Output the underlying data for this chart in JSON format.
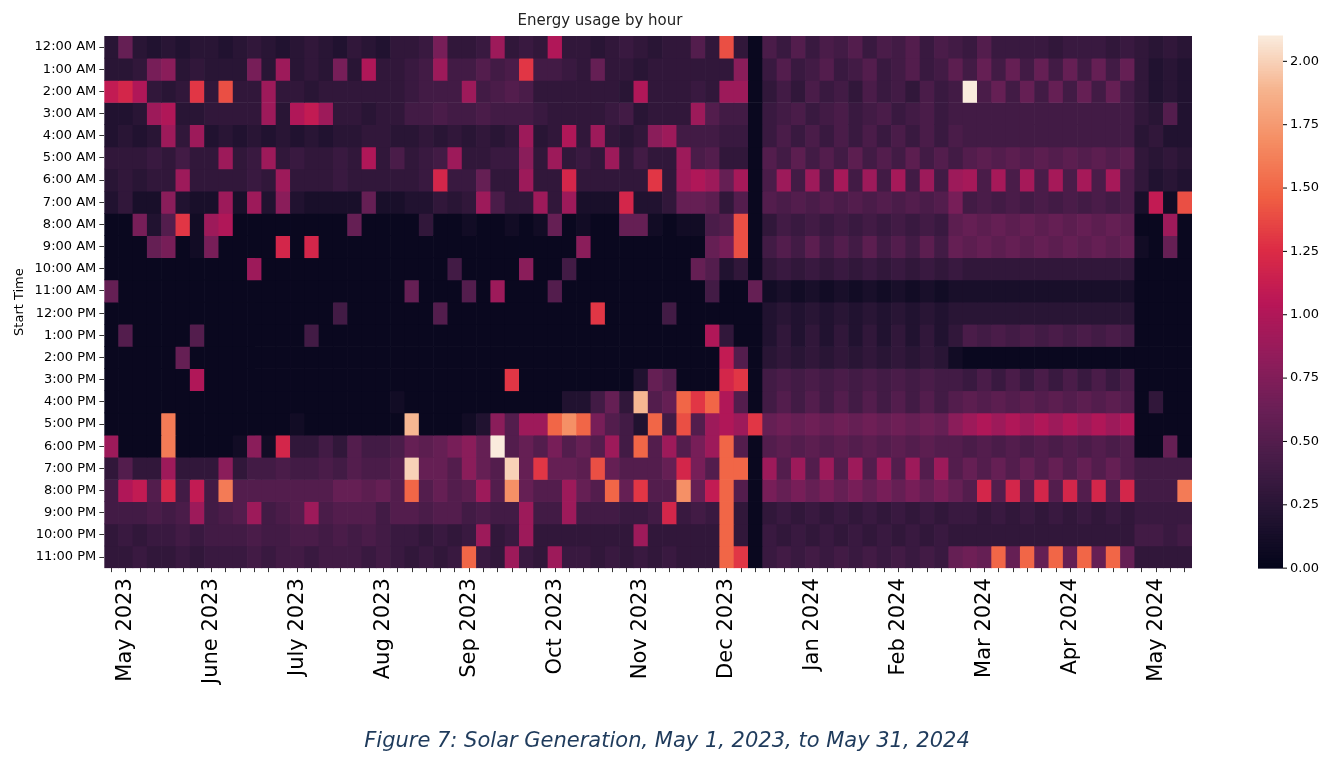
{
  "chart_data": {
    "type": "heatmap",
    "title": "Energy usage by hour",
    "ylabel": "Start Time",
    "categories": [
      null,
      "May 2023",
      null,
      null,
      null,
      null,
      null,
      "June 2023",
      null,
      null,
      null,
      null,
      null,
      "July 2023",
      null,
      null,
      null,
      null,
      null,
      "Aug 2023",
      null,
      null,
      null,
      null,
      null,
      "Sep 2023",
      null,
      null,
      null,
      null,
      null,
      "Oct 2023",
      null,
      null,
      null,
      null,
      null,
      "Nov 2023",
      null,
      null,
      null,
      null,
      null,
      "Dec 2023",
      null,
      null,
      null,
      null,
      null,
      "Jan 2024",
      null,
      null,
      null,
      null,
      null,
      "Feb 2024",
      null,
      null,
      null,
      null,
      null,
      "Mar 2024",
      null,
      null,
      null,
      null,
      null,
      "Apr 2024",
      null,
      null,
      null,
      null,
      null,
      "May 2024",
      null,
      null
    ],
    "y_categories": [
      "12:00 AM",
      "1:00 AM",
      "2:00 AM",
      "3:00 AM",
      "4:00 AM",
      "5:00 AM",
      "6:00 AM",
      "7:00 AM",
      "8:00 AM",
      "9:00 AM",
      "10:00 AM",
      "11:00 AM",
      "12:00 PM",
      "1:00 PM",
      "2:00 PM",
      "3:00 PM",
      "4:00 PM",
      "5:00 PM",
      "6:00 PM",
      "7:00 PM",
      "8:00 PM",
      "9:00 PM",
      "10:00 PM",
      "11:00 PM"
    ],
    "cells": [
      [
        0.25,
        0.6,
        0.25,
        0.2,
        0.25,
        0.2,
        0.25,
        0.25,
        0.2,
        0.25,
        0.3,
        0.25,
        0.2,
        0.25,
        0.3,
        0.25,
        0.2,
        0.3,
        0.25,
        0.2,
        0.3,
        0.3,
        0.35,
        0.7,
        0.3,
        0.3,
        0.35,
        0.9,
        0.3,
        0.35,
        0.3,
        1.0,
        0.3,
        0.3,
        0.25,
        0.3,
        0.35,
        0.3,
        0.25,
        0.3,
        0.3,
        0.5,
        0.3,
        1.4,
        0.3,
        0.05,
        0.45,
        0.35,
        0.5,
        0.35,
        0.45,
        0.4,
        0.5,
        0.35,
        0.45,
        0.4,
        0.5,
        0.35,
        0.45,
        0.4,
        0.35,
        0.5,
        0.35,
        0.35,
        0.35,
        0.35,
        0.3,
        0.35,
        0.35,
        0.35,
        0.3,
        0.35,
        0.3,
        0.25,
        0.3,
        0.25
      ],
      [
        0.25,
        0.25,
        0.3,
        0.7,
        0.8,
        0.25,
        0.3,
        0.25,
        0.25,
        0.25,
        0.7,
        0.25,
        0.9,
        0.25,
        0.3,
        0.25,
        0.7,
        0.25,
        1.0,
        0.3,
        0.3,
        0.35,
        0.4,
        0.9,
        0.4,
        0.4,
        0.5,
        0.4,
        0.45,
        1.3,
        0.4,
        0.4,
        0.35,
        0.3,
        0.6,
        0.3,
        0.3,
        0.25,
        0.3,
        0.3,
        0.3,
        0.3,
        0.3,
        0.3,
        0.8,
        0.05,
        0.35,
        0.5,
        0.35,
        0.4,
        0.5,
        0.35,
        0.4,
        0.5,
        0.35,
        0.4,
        0.5,
        0.35,
        0.4,
        0.55,
        0.4,
        0.6,
        0.4,
        0.6,
        0.4,
        0.6,
        0.4,
        0.6,
        0.4,
        0.6,
        0.4,
        0.6,
        0.3,
        0.2,
        0.25,
        0.2
      ],
      [
        1.1,
        1.2,
        1.0,
        0.3,
        0.25,
        0.3,
        1.3,
        0.3,
        1.4,
        0.3,
        0.3,
        0.9,
        0.3,
        0.3,
        0.25,
        0.3,
        0.3,
        0.3,
        0.3,
        0.3,
        0.3,
        0.35,
        0.4,
        0.4,
        0.4,
        0.9,
        0.4,
        0.45,
        0.5,
        0.45,
        0.3,
        0.3,
        0.3,
        0.3,
        0.3,
        0.3,
        0.25,
        1.0,
        0.3,
        0.3,
        0.3,
        0.35,
        0.3,
        0.9,
        0.9,
        0.05,
        0.3,
        0.4,
        0.3,
        0.45,
        0.35,
        0.4,
        0.3,
        0.45,
        0.35,
        0.4,
        0.3,
        0.45,
        0.35,
        0.4,
        2.1,
        0.45,
        0.6,
        0.4,
        0.6,
        0.4,
        0.6,
        0.4,
        0.6,
        0.4,
        0.6,
        0.4,
        0.3,
        0.2,
        0.25,
        0.2
      ],
      [
        0.2,
        0.2,
        0.25,
        0.9,
        1.0,
        0.25,
        0.25,
        0.3,
        0.3,
        0.3,
        0.3,
        0.9,
        0.25,
        1.0,
        1.1,
        0.9,
        0.3,
        0.3,
        0.25,
        0.3,
        0.3,
        0.4,
        0.4,
        0.45,
        0.4,
        0.4,
        0.45,
        0.4,
        0.4,
        0.4,
        0.35,
        0.3,
        0.3,
        0.3,
        0.3,
        0.35,
        0.4,
        0.25,
        0.3,
        0.3,
        0.3,
        0.9,
        0.5,
        0.4,
        0.4,
        0.05,
        0.35,
        0.4,
        0.45,
        0.35,
        0.4,
        0.45,
        0.35,
        0.4,
        0.45,
        0.35,
        0.4,
        0.45,
        0.35,
        0.4,
        0.4,
        0.4,
        0.4,
        0.4,
        0.4,
        0.4,
        0.4,
        0.4,
        0.4,
        0.4,
        0.4,
        0.4,
        0.3,
        0.25,
        0.5,
        0.2
      ],
      [
        0.2,
        0.25,
        0.2,
        0.25,
        0.9,
        0.3,
        0.9,
        0.2,
        0.25,
        0.2,
        0.25,
        0.2,
        0.25,
        0.2,
        0.25,
        0.2,
        0.25,
        0.25,
        0.3,
        0.3,
        0.25,
        0.25,
        0.3,
        0.25,
        0.3,
        0.25,
        0.3,
        0.25,
        0.3,
        0.9,
        0.25,
        0.3,
        1.0,
        0.3,
        0.9,
        0.3,
        0.25,
        0.3,
        0.8,
        0.9,
        0.4,
        0.4,
        0.4,
        0.35,
        0.35,
        0.05,
        0.35,
        0.45,
        0.35,
        0.45,
        0.35,
        0.45,
        0.35,
        0.45,
        0.35,
        0.45,
        0.35,
        0.45,
        0.35,
        0.45,
        0.4,
        0.4,
        0.4,
        0.4,
        0.4,
        0.4,
        0.4,
        0.4,
        0.4,
        0.4,
        0.4,
        0.4,
        0.25,
        0.3,
        0.2,
        0.2
      ],
      [
        0.3,
        0.3,
        0.3,
        0.35,
        0.3,
        0.4,
        0.3,
        0.3,
        0.9,
        0.3,
        0.35,
        0.9,
        0.3,
        0.35,
        0.3,
        0.3,
        0.35,
        0.3,
        1.0,
        0.3,
        0.45,
        0.3,
        0.35,
        0.4,
        0.9,
        0.3,
        0.3,
        0.35,
        0.35,
        0.8,
        0.3,
        0.9,
        0.3,
        0.35,
        0.3,
        0.9,
        0.3,
        0.4,
        0.3,
        0.3,
        0.9,
        0.45,
        0.5,
        0.3,
        0.3,
        0.05,
        0.5,
        0.4,
        0.55,
        0.4,
        0.5,
        0.4,
        0.55,
        0.4,
        0.5,
        0.4,
        0.55,
        0.4,
        0.5,
        0.4,
        0.5,
        0.55,
        0.5,
        0.55,
        0.5,
        0.55,
        0.5,
        0.55,
        0.5,
        0.55,
        0.5,
        0.55,
        0.3,
        0.25,
        0.3,
        0.25
      ],
      [
        0.25,
        0.3,
        0.25,
        0.3,
        0.3,
        0.9,
        0.3,
        0.3,
        0.3,
        0.3,
        0.35,
        0.3,
        0.9,
        0.3,
        0.3,
        0.3,
        0.35,
        0.3,
        0.3,
        0.3,
        0.3,
        0.3,
        0.35,
        1.2,
        0.35,
        0.35,
        0.6,
        0.3,
        0.3,
        0.9,
        0.3,
        0.3,
        1.2,
        0.3,
        0.3,
        0.3,
        0.3,
        0.3,
        1.3,
        0.3,
        0.9,
        1.0,
        0.9,
        0.6,
        0.95,
        0.05,
        0.45,
        0.9,
        0.4,
        0.9,
        0.4,
        0.95,
        0.4,
        0.9,
        0.4,
        0.95,
        0.4,
        0.9,
        0.4,
        0.9,
        0.95,
        0.45,
        0.95,
        0.45,
        0.95,
        0.45,
        0.95,
        0.45,
        0.95,
        0.45,
        0.95,
        0.45,
        0.3,
        0.2,
        0.25,
        0.2
      ],
      [
        0.2,
        0.3,
        0.15,
        0.15,
        0.8,
        0.2,
        0.15,
        0.15,
        0.9,
        0.15,
        0.9,
        0.2,
        0.8,
        0.2,
        0.15,
        0.15,
        0.15,
        0.15,
        0.6,
        0.15,
        0.15,
        0.2,
        0.2,
        0.3,
        0.25,
        0.3,
        0.9,
        0.45,
        0.3,
        0.3,
        0.9,
        0.3,
        0.9,
        0.15,
        0.15,
        0.15,
        1.2,
        0.2,
        0.2,
        0.3,
        0.6,
        0.6,
        0.55,
        0.3,
        0.5,
        0.05,
        0.5,
        0.45,
        0.5,
        0.45,
        0.5,
        0.45,
        0.5,
        0.45,
        0.5,
        0.45,
        0.5,
        0.45,
        0.5,
        0.7,
        0.4,
        0.45,
        0.4,
        0.45,
        0.4,
        0.45,
        0.4,
        0.45,
        0.4,
        0.45,
        0.4,
        0.45,
        0.15,
        1.1,
        0.1,
        1.4
      ],
      [
        0.05,
        0.05,
        0.7,
        0.2,
        0.5,
        1.3,
        0.1,
        0.9,
        1.0,
        0.05,
        0.05,
        0.05,
        0.05,
        0.05,
        0.05,
        0.05,
        0.05,
        0.6,
        0.05,
        0.05,
        0.05,
        0.05,
        0.3,
        0.05,
        0.05,
        0.1,
        0.05,
        0.05,
        0.1,
        0.05,
        0.1,
        0.6,
        0.05,
        0.1,
        0.05,
        0.05,
        0.6,
        0.6,
        0.1,
        0.05,
        0.1,
        0.1,
        0.45,
        0.5,
        1.4,
        0.05,
        0.3,
        0.4,
        0.35,
        0.4,
        0.35,
        0.4,
        0.35,
        0.4,
        0.35,
        0.4,
        0.35,
        0.4,
        0.35,
        0.55,
        0.6,
        0.55,
        0.6,
        0.55,
        0.6,
        0.55,
        0.6,
        0.55,
        0.6,
        0.55,
        0.6,
        0.55,
        0.05,
        0.05,
        0.9,
        0.05
      ],
      [
        0.05,
        0.05,
        0.05,
        0.6,
        0.7,
        0.05,
        0.1,
        0.7,
        0.05,
        0.05,
        0.05,
        0.05,
        1.2,
        0.05,
        1.2,
        0.05,
        0.05,
        0.05,
        0.05,
        0.05,
        0.05,
        0.05,
        0.05,
        0.05,
        0.05,
        0.05,
        0.05,
        0.05,
        0.05,
        0.05,
        0.05,
        0.05,
        0.05,
        0.8,
        0.05,
        0.05,
        0.05,
        0.05,
        0.05,
        0.05,
        0.05,
        0.05,
        0.6,
        0.7,
        1.4,
        0.05,
        0.4,
        0.5,
        0.4,
        0.55,
        0.4,
        0.5,
        0.4,
        0.55,
        0.4,
        0.5,
        0.4,
        0.55,
        0.4,
        0.6,
        0.55,
        0.6,
        0.55,
        0.6,
        0.55,
        0.6,
        0.55,
        0.6,
        0.55,
        0.6,
        0.55,
        0.6,
        0.1,
        0.05,
        0.6,
        0.05
      ],
      [
        0.05,
        0.05,
        0.05,
        0.05,
        0.05,
        0.05,
        0.05,
        0.05,
        0.05,
        0.05,
        0.9,
        0.05,
        0.05,
        0.05,
        0.05,
        0.05,
        0.05,
        0.05,
        0.05,
        0.05,
        0.05,
        0.05,
        0.05,
        0.05,
        0.4,
        0.05,
        0.05,
        0.05,
        0.05,
        0.8,
        0.05,
        0.05,
        0.4,
        0.05,
        0.05,
        0.05,
        0.05,
        0.05,
        0.05,
        0.05,
        0.05,
        0.6,
        0.5,
        0.2,
        0.3,
        0.05,
        0.3,
        0.35,
        0.3,
        0.35,
        0.3,
        0.35,
        0.3,
        0.35,
        0.3,
        0.35,
        0.3,
        0.35,
        0.3,
        0.35,
        0.3,
        0.3,
        0.3,
        0.3,
        0.3,
        0.3,
        0.3,
        0.3,
        0.3,
        0.3,
        0.3,
        0.3,
        0.05,
        0.05,
        0.05,
        0.05
      ],
      [
        0.6,
        0.05,
        0.05,
        0.05,
        0.05,
        0.05,
        0.05,
        0.05,
        0.05,
        0.05,
        0.05,
        0.05,
        0.05,
        0.05,
        0.05,
        0.05,
        0.05,
        0.05,
        0.05,
        0.05,
        0.05,
        0.6,
        0.05,
        0.05,
        0.05,
        0.5,
        0.05,
        0.9,
        0.05,
        0.05,
        0.05,
        0.5,
        0.05,
        0.05,
        0.05,
        0.05,
        0.05,
        0.05,
        0.05,
        0.05,
        0.05,
        0.05,
        0.4,
        0.05,
        0.05,
        0.6,
        0.1,
        0.15,
        0.1,
        0.15,
        0.1,
        0.15,
        0.1,
        0.15,
        0.1,
        0.15,
        0.1,
        0.15,
        0.1,
        0.15,
        0.15,
        0.15,
        0.15,
        0.15,
        0.15,
        0.15,
        0.15,
        0.15,
        0.15,
        0.15,
        0.15,
        0.15,
        0.05,
        0.05,
        0.05,
        0.05
      ],
      [
        0.05,
        0.05,
        0.05,
        0.05,
        0.05,
        0.05,
        0.05,
        0.05,
        0.05,
        0.05,
        0.05,
        0.05,
        0.05,
        0.05,
        0.05,
        0.05,
        0.4,
        0.05,
        0.05,
        0.05,
        0.05,
        0.05,
        0.05,
        0.5,
        0.05,
        0.05,
        0.05,
        0.05,
        0.05,
        0.05,
        0.05,
        0.05,
        0.05,
        0.05,
        1.3,
        0.05,
        0.05,
        0.05,
        0.05,
        0.4,
        0.05,
        0.05,
        0.05,
        0.05,
        0.05,
        0.05,
        0.2,
        0.25,
        0.2,
        0.25,
        0.2,
        0.25,
        0.2,
        0.25,
        0.2,
        0.25,
        0.2,
        0.25,
        0.2,
        0.25,
        0.25,
        0.25,
        0.25,
        0.25,
        0.25,
        0.25,
        0.25,
        0.25,
        0.25,
        0.25,
        0.25,
        0.25,
        0.05,
        0.05,
        0.05,
        0.05
      ],
      [
        0.05,
        0.5,
        0.05,
        0.05,
        0.05,
        0.05,
        0.5,
        0.05,
        0.05,
        0.05,
        0.05,
        0.05,
        0.05,
        0.05,
        0.4,
        0.05,
        0.05,
        0.05,
        0.05,
        0.05,
        0.05,
        0.05,
        0.05,
        0.05,
        0.05,
        0.05,
        0.05,
        0.05,
        0.05,
        0.05,
        0.05,
        0.05,
        0.05,
        0.05,
        0.05,
        0.05,
        0.05,
        0.05,
        0.05,
        0.05,
        0.05,
        0.05,
        1.0,
        0.3,
        0.05,
        0.05,
        0.2,
        0.3,
        0.2,
        0.3,
        0.2,
        0.3,
        0.2,
        0.3,
        0.2,
        0.3,
        0.2,
        0.3,
        0.2,
        0.3,
        0.45,
        0.4,
        0.45,
        0.4,
        0.45,
        0.4,
        0.45,
        0.4,
        0.45,
        0.4,
        0.45,
        0.4,
        0.05,
        0.05,
        0.05,
        0.05
      ],
      [
        0.05,
        0.05,
        0.05,
        0.05,
        0.05,
        0.6,
        0.05,
        0.05,
        0.05,
        0.05,
        0.05,
        0.05,
        0.05,
        0.05,
        0.05,
        0.05,
        0.05,
        0.05,
        0.05,
        0.05,
        0.05,
        0.05,
        0.05,
        0.05,
        0.05,
        0.05,
        0.05,
        0.05,
        0.05,
        0.05,
        0.05,
        0.05,
        0.05,
        0.05,
        0.05,
        0.05,
        0.05,
        0.05,
        0.05,
        0.05,
        0.05,
        0.05,
        0.05,
        1.1,
        0.5,
        0.05,
        0.25,
        0.3,
        0.25,
        0.3,
        0.25,
        0.3,
        0.25,
        0.3,
        0.25,
        0.3,
        0.25,
        0.3,
        0.25,
        0.1,
        0.05,
        0.05,
        0.05,
        0.05,
        0.05,
        0.05,
        0.05,
        0.05,
        0.05,
        0.05,
        0.05,
        0.05,
        0.05,
        0.05,
        0.05,
        0.05
      ],
      [
        0.05,
        0.05,
        0.05,
        0.05,
        0.05,
        0.05,
        1.0,
        0.05,
        0.05,
        0.05,
        0.05,
        0.05,
        0.05,
        0.05,
        0.05,
        0.05,
        0.05,
        0.05,
        0.05,
        0.05,
        0.05,
        0.05,
        0.05,
        0.05,
        0.05,
        0.05,
        0.05,
        0.05,
        1.3,
        0.05,
        0.05,
        0.05,
        0.05,
        0.05,
        0.05,
        0.05,
        0.05,
        0.2,
        0.6,
        0.5,
        0.05,
        0.05,
        0.05,
        1.2,
        1.3,
        0.05,
        0.4,
        0.45,
        0.4,
        0.45,
        0.4,
        0.45,
        0.4,
        0.45,
        0.4,
        0.45,
        0.4,
        0.45,
        0.4,
        0.4,
        0.35,
        0.45,
        0.35,
        0.45,
        0.35,
        0.45,
        0.35,
        0.45,
        0.35,
        0.45,
        0.35,
        0.45,
        0.05,
        0.05,
        0.05,
        0.05
      ],
      [
        0.05,
        0.05,
        0.05,
        0.05,
        0.05,
        0.05,
        0.05,
        0.05,
        0.05,
        0.05,
        0.05,
        0.05,
        0.05,
        0.05,
        0.05,
        0.05,
        0.05,
        0.05,
        0.05,
        0.05,
        0.1,
        0.05,
        0.05,
        0.05,
        0.05,
        0.05,
        0.05,
        0.05,
        0.05,
        0.05,
        0.05,
        0.05,
        0.2,
        0.2,
        0.4,
        0.6,
        0.3,
        1.9,
        0.5,
        0.6,
        1.5,
        1.3,
        1.5,
        1.0,
        0.5,
        0.05,
        0.4,
        0.5,
        0.4,
        0.5,
        0.4,
        0.5,
        0.4,
        0.5,
        0.4,
        0.5,
        0.4,
        0.5,
        0.4,
        0.5,
        0.55,
        0.5,
        0.55,
        0.5,
        0.55,
        0.5,
        0.55,
        0.5,
        0.55,
        0.5,
        0.55,
        0.5,
        0.05,
        0.3,
        0.05,
        0.05
      ],
      [
        0.05,
        0.05,
        0.05,
        0.05,
        1.6,
        0.05,
        0.05,
        0.05,
        0.05,
        0.05,
        0.05,
        0.05,
        0.05,
        0.1,
        0.05,
        0.05,
        0.05,
        0.05,
        0.05,
        0.05,
        0.05,
        1.9,
        0.05,
        0.05,
        0.05,
        0.1,
        0.2,
        0.8,
        0.5,
        0.9,
        0.9,
        1.5,
        1.7,
        1.5,
        0.7,
        0.5,
        0.4,
        0.2,
        1.5,
        0.4,
        1.4,
        0.5,
        0.9,
        1.0,
        0.9,
        1.3,
        0.6,
        0.65,
        0.6,
        0.65,
        0.6,
        0.65,
        0.6,
        0.65,
        0.6,
        0.65,
        0.6,
        0.65,
        0.6,
        0.8,
        0.9,
        1.0,
        0.9,
        1.0,
        0.9,
        1.0,
        0.9,
        1.0,
        0.9,
        1.0,
        0.9,
        1.0,
        0.05,
        0.05,
        0.05,
        0.05
      ],
      [
        0.9,
        0.05,
        0.05,
        0.05,
        1.6,
        0.05,
        0.05,
        0.05,
        0.05,
        0.1,
        0.8,
        0.1,
        1.2,
        0.3,
        0.3,
        0.4,
        0.3,
        0.5,
        0.4,
        0.4,
        0.45,
        0.6,
        0.55,
        0.6,
        0.7,
        0.8,
        0.6,
        2.1,
        0.5,
        0.6,
        0.5,
        0.7,
        0.5,
        0.6,
        0.5,
        0.9,
        0.4,
        1.5,
        0.5,
        0.9,
        0.5,
        0.7,
        0.9,
        1.5,
        0.5,
        0.05,
        0.5,
        0.55,
        0.5,
        0.55,
        0.5,
        0.55,
        0.5,
        0.55,
        0.5,
        0.55,
        0.5,
        0.55,
        0.5,
        0.5,
        0.45,
        0.5,
        0.45,
        0.5,
        0.45,
        0.5,
        0.45,
        0.5,
        0.45,
        0.5,
        0.45,
        0.5,
        0.05,
        0.05,
        0.6,
        0.05
      ],
      [
        0.3,
        0.5,
        0.3,
        0.3,
        0.9,
        0.3,
        0.3,
        0.3,
        0.8,
        0.3,
        0.4,
        0.4,
        0.45,
        0.4,
        0.4,
        0.45,
        0.4,
        0.5,
        0.45,
        0.45,
        0.5,
        2.0,
        0.6,
        0.6,
        0.5,
        0.8,
        0.6,
        0.5,
        2.0,
        0.6,
        1.3,
        0.6,
        0.6,
        0.55,
        1.4,
        0.6,
        0.5,
        0.5,
        0.5,
        0.6,
        1.2,
        0.7,
        0.5,
        1.5,
        1.5,
        0.05,
        0.9,
        0.5,
        0.9,
        0.5,
        0.9,
        0.5,
        0.9,
        0.5,
        0.9,
        0.5,
        0.9,
        0.5,
        0.9,
        0.5,
        0.6,
        0.5,
        0.6,
        0.5,
        0.6,
        0.5,
        0.6,
        0.5,
        0.6,
        0.5,
        0.6,
        0.5,
        0.4,
        0.4,
        0.4,
        0.4
      ],
      [
        0.4,
        1.0,
        1.1,
        0.5,
        1.2,
        0.4,
        1.1,
        0.4,
        1.6,
        0.5,
        0.5,
        0.5,
        0.5,
        0.5,
        0.5,
        0.5,
        0.6,
        0.6,
        0.55,
        0.6,
        0.5,
        1.5,
        0.5,
        0.6,
        0.5,
        0.55,
        0.9,
        0.5,
        1.7,
        0.6,
        0.5,
        0.5,
        0.9,
        0.6,
        0.5,
        1.5,
        0.6,
        1.3,
        0.5,
        0.5,
        1.7,
        0.6,
        1.1,
        1.5,
        0.5,
        0.05,
        0.7,
        0.6,
        0.7,
        0.6,
        0.7,
        0.6,
        0.7,
        0.6,
        0.7,
        0.6,
        0.7,
        0.6,
        0.7,
        0.6,
        0.5,
        1.2,
        0.5,
        1.2,
        0.5,
        1.2,
        0.5,
        1.2,
        0.5,
        1.2,
        0.5,
        1.2,
        0.4,
        0.4,
        0.4,
        1.6
      ],
      [
        0.4,
        0.4,
        0.4,
        0.45,
        0.4,
        0.45,
        0.9,
        0.4,
        0.45,
        0.5,
        0.9,
        0.4,
        0.45,
        0.5,
        0.9,
        0.45,
        0.5,
        0.5,
        0.5,
        0.4,
        0.5,
        0.5,
        0.45,
        0.5,
        0.5,
        0.4,
        0.45,
        0.4,
        0.4,
        0.9,
        0.4,
        0.4,
        0.9,
        0.4,
        0.4,
        0.4,
        0.35,
        0.35,
        0.4,
        1.2,
        0.35,
        0.4,
        0.35,
        1.5,
        0.3,
        0.05,
        0.3,
        0.35,
        0.3,
        0.35,
        0.3,
        0.35,
        0.3,
        0.35,
        0.3,
        0.35,
        0.3,
        0.35,
        0.3,
        0.35,
        0.35,
        0.3,
        0.35,
        0.3,
        0.35,
        0.3,
        0.35,
        0.3,
        0.35,
        0.3,
        0.35,
        0.3,
        0.35,
        0.35,
        0.35,
        0.35
      ],
      [
        0.3,
        0.35,
        0.3,
        0.35,
        0.35,
        0.4,
        0.35,
        0.4,
        0.4,
        0.4,
        0.45,
        0.4,
        0.4,
        0.45,
        0.45,
        0.4,
        0.45,
        0.4,
        0.45,
        0.4,
        0.35,
        0.35,
        0.3,
        0.35,
        0.3,
        0.35,
        0.9,
        0.3,
        0.35,
        0.9,
        0.3,
        0.3,
        0.3,
        0.3,
        0.3,
        0.3,
        0.3,
        0.9,
        0.3,
        0.3,
        0.3,
        0.3,
        0.3,
        1.5,
        0.3,
        0.05,
        0.35,
        0.3,
        0.35,
        0.3,
        0.35,
        0.3,
        0.35,
        0.3,
        0.35,
        0.3,
        0.35,
        0.3,
        0.35,
        0.3,
        0.3,
        0.3,
        0.3,
        0.3,
        0.3,
        0.3,
        0.3,
        0.3,
        0.3,
        0.3,
        0.3,
        0.3,
        0.4,
        0.4,
        0.35,
        0.4
      ],
      [
        0.3,
        0.3,
        0.35,
        0.3,
        0.3,
        0.35,
        0.3,
        0.35,
        0.35,
        0.35,
        0.4,
        0.35,
        0.4,
        0.4,
        0.35,
        0.4,
        0.4,
        0.4,
        0.35,
        0.4,
        0.35,
        0.3,
        0.35,
        0.3,
        0.35,
        1.5,
        0.35,
        0.3,
        0.9,
        0.35,
        0.3,
        0.9,
        0.35,
        0.35,
        0.3,
        0.35,
        0.3,
        0.35,
        0.3,
        0.35,
        0.3,
        0.3,
        0.3,
        1.5,
        1.3,
        0.05,
        0.35,
        0.4,
        0.35,
        0.4,
        0.35,
        0.4,
        0.35,
        0.4,
        0.35,
        0.4,
        0.35,
        0.4,
        0.35,
        0.6,
        0.65,
        0.6,
        1.5,
        0.6,
        1.5,
        0.6,
        1.5,
        0.6,
        1.5,
        0.6,
        1.5,
        0.6,
        0.3,
        0.3,
        0.3,
        0.3
      ]
    ],
    "clim": [
      0,
      2.1
    ],
    "cticks": [
      {
        "value": 0,
        "label": "0.00"
      },
      {
        "value": 0.25,
        "label": "0.25"
      },
      {
        "value": 0.5,
        "label": "0.50"
      },
      {
        "value": 0.75,
        "label": "0.75"
      },
      {
        "value": 1,
        "label": "1.00"
      },
      {
        "value": 1.25,
        "label": "1.25"
      },
      {
        "value": 1.5,
        "label": "1.50"
      },
      {
        "value": 1.75,
        "label": "1.75"
      },
      {
        "value": 2,
        "label": "2.00"
      }
    ],
    "annotations": [
      "Figure 7: Solar Generation, May 1, 2023, to May 31, 2024"
    ]
  }
}
